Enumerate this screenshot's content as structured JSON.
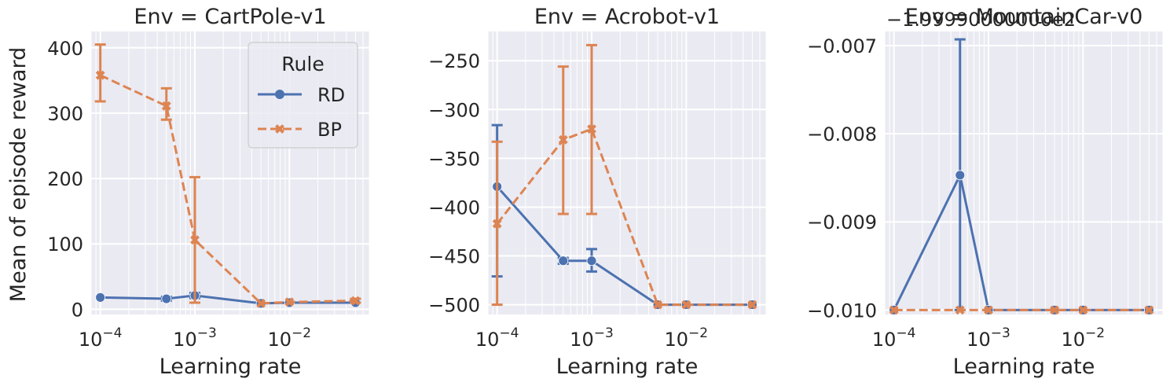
{
  "figure": {
    "ylabel": "Mean of episode reward"
  },
  "legend": {
    "title": "Rule",
    "entries": [
      {
        "name": "RD",
        "color": "#4c72b0",
        "marker": "circle",
        "dash": "solid"
      },
      {
        "name": "BP",
        "color": "#dd8452",
        "marker": "x",
        "dash": "dashed"
      }
    ]
  },
  "colors": {
    "background": "#eaeaf2",
    "grid": "#ffffff",
    "rd": "#4c72b0",
    "bp": "#dd8452"
  },
  "chart_data": [
    {
      "type": "line",
      "title": "Env = CartPole-v1",
      "xlabel": "Learning rate",
      "ylabel": "Mean of episode reward",
      "xscale": "log",
      "xlim": [
        8e-05,
        0.07
      ],
      "ylim": [
        -8,
        425
      ],
      "yticks": [
        0,
        100,
        200,
        300,
        400
      ],
      "ytick_labels": [
        "0",
        "100",
        "200",
        "300",
        "400"
      ],
      "xticks": [
        0.0001,
        0.001,
        0.01
      ],
      "xtick_base": "10",
      "xtick_exponents": [
        "−4",
        "−3",
        "−2"
      ],
      "grid": true,
      "legend": "top-right",
      "series": [
        {
          "name": "RD",
          "x": [
            0.0001,
            0.0005,
            0.001,
            0.005,
            0.01,
            0.05
          ],
          "y": [
            18,
            16,
            21,
            9,
            10,
            10
          ],
          "err_low": [
            null,
            13,
            17,
            null,
            null,
            null
          ],
          "err_high": [
            null,
            19,
            25,
            null,
            null,
            null
          ]
        },
        {
          "name": "BP",
          "x": [
            0.0001,
            0.0005,
            0.001,
            0.005,
            0.01,
            0.05
          ],
          "y": [
            358,
            311,
            106,
            9,
            11,
            13
          ],
          "err_low": [
            318,
            290,
            10,
            null,
            null,
            10
          ],
          "err_high": [
            405,
            338,
            202,
            null,
            null,
            16
          ]
        }
      ]
    },
    {
      "type": "line",
      "title": "Env = Acrobot-v1",
      "xlabel": "Learning rate",
      "xscale": "log",
      "xlim": [
        8e-05,
        0.07
      ],
      "ylim": [
        -510,
        -220
      ],
      "yticks": [
        -500,
        -450,
        -400,
        -350,
        -300,
        -250
      ],
      "ytick_labels": [
        "−500",
        "−450",
        "−400",
        "−350",
        "−300",
        "−250"
      ],
      "xticks": [
        0.0001,
        0.001,
        0.01
      ],
      "xtick_base": "10",
      "xtick_exponents": [
        "−4",
        "−3",
        "−2"
      ],
      "grid": true,
      "series": [
        {
          "name": "RD",
          "x": [
            0.0001,
            0.0005,
            0.001,
            0.005,
            0.01,
            0.05
          ],
          "y": [
            -379,
            -455,
            -455,
            -500,
            -500,
            -500
          ],
          "err_low": [
            -471,
            -458,
            -466,
            null,
            null,
            null
          ],
          "err_high": [
            -316,
            -452,
            -443,
            null,
            null,
            null
          ]
        },
        {
          "name": "BP",
          "x": [
            0.0001,
            0.0005,
            0.001,
            0.005,
            0.01,
            0.05
          ],
          "y": [
            -417,
            -331,
            -320,
            -500,
            -500,
            -500
          ],
          "err_low": [
            -500,
            -407,
            -407,
            null,
            null,
            null
          ],
          "err_high": [
            -333,
            -256,
            -234,
            null,
            null,
            null
          ]
        }
      ]
    },
    {
      "type": "line",
      "title": "Env = MountainCar-v0",
      "offset_label": "−1.99990000000e2",
      "xlabel": "Learning rate",
      "xscale": "log",
      "xlim": [
        8e-05,
        0.07
      ],
      "ylim": [
        -0.01005,
        -0.00684
      ],
      "yticks": [
        -0.01,
        -0.009,
        -0.008,
        -0.007
      ],
      "ytick_labels": [
        "−0.010",
        "−0.009",
        "−0.008",
        "−0.007"
      ],
      "xticks": [
        0.0001,
        0.001,
        0.01
      ],
      "xtick_base": "10",
      "xtick_exponents": [
        "−4",
        "−3",
        "−2"
      ],
      "grid": true,
      "series": [
        {
          "name": "RD",
          "x": [
            0.0001,
            0.0005,
            0.001,
            0.005,
            0.01,
            0.05
          ],
          "y": [
            -0.01,
            -0.00847,
            -0.01,
            -0.01,
            -0.01,
            -0.01
          ],
          "err_low": [
            null,
            -0.01,
            null,
            null,
            null,
            null
          ],
          "err_high": [
            null,
            -0.00693,
            null,
            null,
            null,
            null
          ]
        },
        {
          "name": "BP",
          "x": [
            0.0001,
            0.0005,
            0.001,
            0.005,
            0.01,
            0.05
          ],
          "y": [
            -0.01,
            -0.01,
            -0.01,
            -0.01,
            -0.01,
            -0.01
          ],
          "err_low": [
            null,
            null,
            null,
            null,
            null,
            null
          ],
          "err_high": [
            null,
            null,
            null,
            null,
            null,
            null
          ]
        }
      ]
    }
  ]
}
